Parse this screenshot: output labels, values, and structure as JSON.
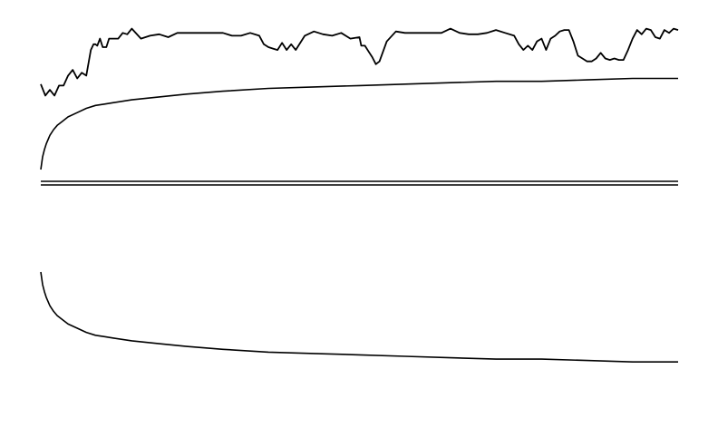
{
  "chart_data": {
    "type": "line",
    "title": "",
    "xlabel": "",
    "ylabel": "",
    "grid": false,
    "legend": "none",
    "xlim": [
      0,
      700
    ],
    "panels": [
      {
        "name": "",
        "ylim": [
          0,
          100
        ],
        "series": [
          {
            "style": "jagged-line",
            "x": [
              0,
              5,
              10,
              15,
              20,
              25,
              30,
              35,
              40,
              45,
              50,
              55,
              58,
              60,
              62,
              65,
              68,
              70,
              72,
              75,
              80,
              85,
              90,
              95,
              100,
              110,
              120,
              130,
              140,
              150,
              160,
              170,
              180,
              190,
              200,
              210,
              220,
              230,
              240,
              245,
              250,
              255,
              260,
              265,
              270,
              275,
              280,
              290,
              300,
              310,
              320,
              330,
              340,
              350,
              352,
              356,
              360,
              364,
              368,
              372,
              376,
              380,
              390,
              400,
              410,
              420,
              430,
              440,
              450,
              460,
              470,
              480,
              490,
              500,
              510,
              520,
              525,
              530,
              535,
              540,
              545,
              550,
              555,
              560,
              565,
              570,
              575,
              580,
              585,
              590,
              595,
              600,
              605,
              610,
              615,
              620,
              625,
              630,
              635,
              640,
              645,
              650,
              655,
              660,
              665,
              670,
              675,
              680,
              685,
              690,
              695,
              700
            ],
            "y": [
              60,
              52,
              56,
              52,
              59,
              59,
              66,
              70,
              64,
              68,
              66,
              84,
              88,
              88,
              87,
              92,
              86,
              86,
              86,
              92,
              92,
              92,
              96,
              95,
              99,
              92,
              94,
              95,
              93,
              96,
              96,
              96,
              96,
              96,
              96,
              94,
              94,
              96,
              94,
              88,
              86,
              85,
              84,
              89,
              84,
              88,
              84,
              94,
              97,
              95,
              94,
              96,
              92,
              93,
              87,
              87,
              83,
              79,
              74,
              76,
              83,
              90,
              97,
              96,
              96,
              96,
              96,
              96,
              99,
              96,
              95,
              95,
              96,
              98,
              96,
              94,
              88,
              84,
              87,
              84,
              90,
              92,
              84,
              92,
              94,
              97,
              98,
              98,
              90,
              80,
              78,
              76,
              76,
              78,
              82,
              78,
              77,
              78,
              77,
              77,
              84,
              92,
              98,
              95,
              99,
              98,
              93,
              92,
              98,
              96,
              99,
              98
            ]
          },
          {
            "style": "smooth-curve",
            "x": [
              0,
              2,
              4,
              6,
              8,
              10,
              14,
              18,
              24,
              30,
              40,
              50,
              60,
              70,
              80,
              100,
              130,
              160,
              200,
              250,
              300,
              350,
              400,
              450,
              500,
              550,
              600,
              650,
              700
            ],
            "y": [
              0,
              9,
              14,
              18,
              21,
              24,
              28,
              31,
              34,
              37,
              40,
              43,
              45,
              46,
              47,
              49,
              51,
              53,
              55,
              57,
              58,
              59,
              60,
              61,
              62,
              62,
              63,
              64,
              64
            ]
          }
        ]
      },
      {
        "name": "",
        "ylim": [
          -100,
          0
        ],
        "series": [
          {
            "style": "smooth-curve",
            "x": [
              0,
              2,
              4,
              6,
              8,
              10,
              14,
              18,
              24,
              30,
              40,
              50,
              60,
              70,
              80,
              100,
              130,
              160,
              200,
              250,
              300,
              350,
              400,
              450,
              500,
              550,
              600,
              650,
              700
            ],
            "y": [
              0,
              -9,
              -14,
              -18,
              -21,
              -24,
              -28,
              -31,
              -34,
              -37,
              -40,
              -43,
              -45,
              -46,
              -47,
              -49,
              -51,
              -53,
              -55,
              -57,
              -58,
              -59,
              -60,
              -61,
              -62,
              -62,
              -63,
              -64,
              -64
            ]
          }
        ]
      }
    ]
  }
}
